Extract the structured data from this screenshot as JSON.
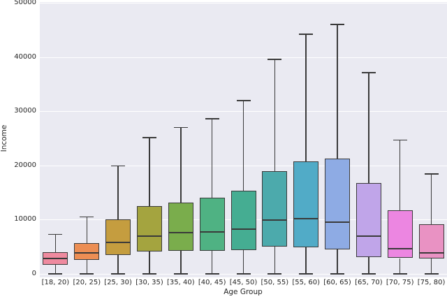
{
  "figure": {
    "type": "seaborn-boxplot",
    "background_color": "#ffffff",
    "plot_background_color": "#eaeaf2",
    "gridline_color": "#ffffff",
    "line_color": "#3a3a3a",
    "tick_text_color": "#262626"
  },
  "chart_data": {
    "type": "box",
    "title": "",
    "xlabel": "Age Group",
    "ylabel": "Income",
    "ylim": [
      0,
      50000
    ],
    "yticks": [
      0,
      10000,
      20000,
      30000,
      40000,
      50000
    ],
    "ytick_labels": [
      "0",
      "10000",
      "20000",
      "30000",
      "40000",
      "50000"
    ],
    "grid": true,
    "legend": false,
    "categories": [
      "[18, 20)",
      "[20, 25)",
      "[25, 30)",
      "[30, 35)",
      "[35, 40)",
      "[40, 45)",
      "[45, 50)",
      "[50, 55)",
      "[55, 60)",
      "[60, 65)",
      "[65, 70)",
      "[70, 75)",
      "[75, 80)"
    ],
    "boxes": [
      {
        "category": "[18, 20)",
        "whisker_low": 0,
        "q1": 1700,
        "median": 2900,
        "q3": 4000,
        "whisker_high": 7300,
        "color": "#ef8a9f"
      },
      {
        "category": "[20, 25)",
        "whisker_low": 0,
        "q1": 2600,
        "median": 3900,
        "q3": 5700,
        "whisker_high": 10500,
        "color": "#ec8e54"
      },
      {
        "category": "[25, 30)",
        "whisker_low": 0,
        "q1": 3500,
        "median": 5800,
        "q3": 10100,
        "whisker_high": 19900,
        "color": "#c59d3f"
      },
      {
        "category": "[30, 35)",
        "whisker_low": 0,
        "q1": 4100,
        "median": 7000,
        "q3": 12500,
        "whisker_high": 25100,
        "color": "#a4a43f"
      },
      {
        "category": "[35, 40)",
        "whisker_low": 0,
        "q1": 4300,
        "median": 7600,
        "q3": 13200,
        "whisker_high": 27000,
        "color": "#7aad4c"
      },
      {
        "category": "[40, 45)",
        "whisker_low": 0,
        "q1": 4200,
        "median": 7700,
        "q3": 14000,
        "whisker_high": 28600,
        "color": "#4fb283"
      },
      {
        "category": "[45, 50)",
        "whisker_low": 0,
        "q1": 4400,
        "median": 8300,
        "q3": 15300,
        "whisker_high": 32000,
        "color": "#45ad92"
      },
      {
        "category": "[50, 55)",
        "whisker_low": 0,
        "q1": 5000,
        "median": 9900,
        "q3": 18900,
        "whisker_high": 39600,
        "color": "#4caaac"
      },
      {
        "category": "[55, 60)",
        "whisker_low": 0,
        "q1": 4900,
        "median": 10200,
        "q3": 20700,
        "whisker_high": 44200,
        "color": "#51abc7"
      },
      {
        "category": "[60, 65)",
        "whisker_low": 0,
        "q1": 4500,
        "median": 9500,
        "q3": 21300,
        "whisker_high": 46000,
        "color": "#8eabe4"
      },
      {
        "category": "[65, 70)",
        "whisker_low": 0,
        "q1": 3100,
        "median": 7000,
        "q3": 16700,
        "whisker_high": 37100,
        "color": "#c0a5e9"
      },
      {
        "category": "[70, 75)",
        "whisker_low": 0,
        "q1": 2900,
        "median": 4700,
        "q3": 11700,
        "whisker_high": 24700,
        "color": "#ec86e1"
      },
      {
        "category": "[75, 80)",
        "whisker_low": 0,
        "q1": 2800,
        "median": 3900,
        "q3": 9100,
        "whisker_high": 18400,
        "color": "#e992c3"
      }
    ]
  }
}
